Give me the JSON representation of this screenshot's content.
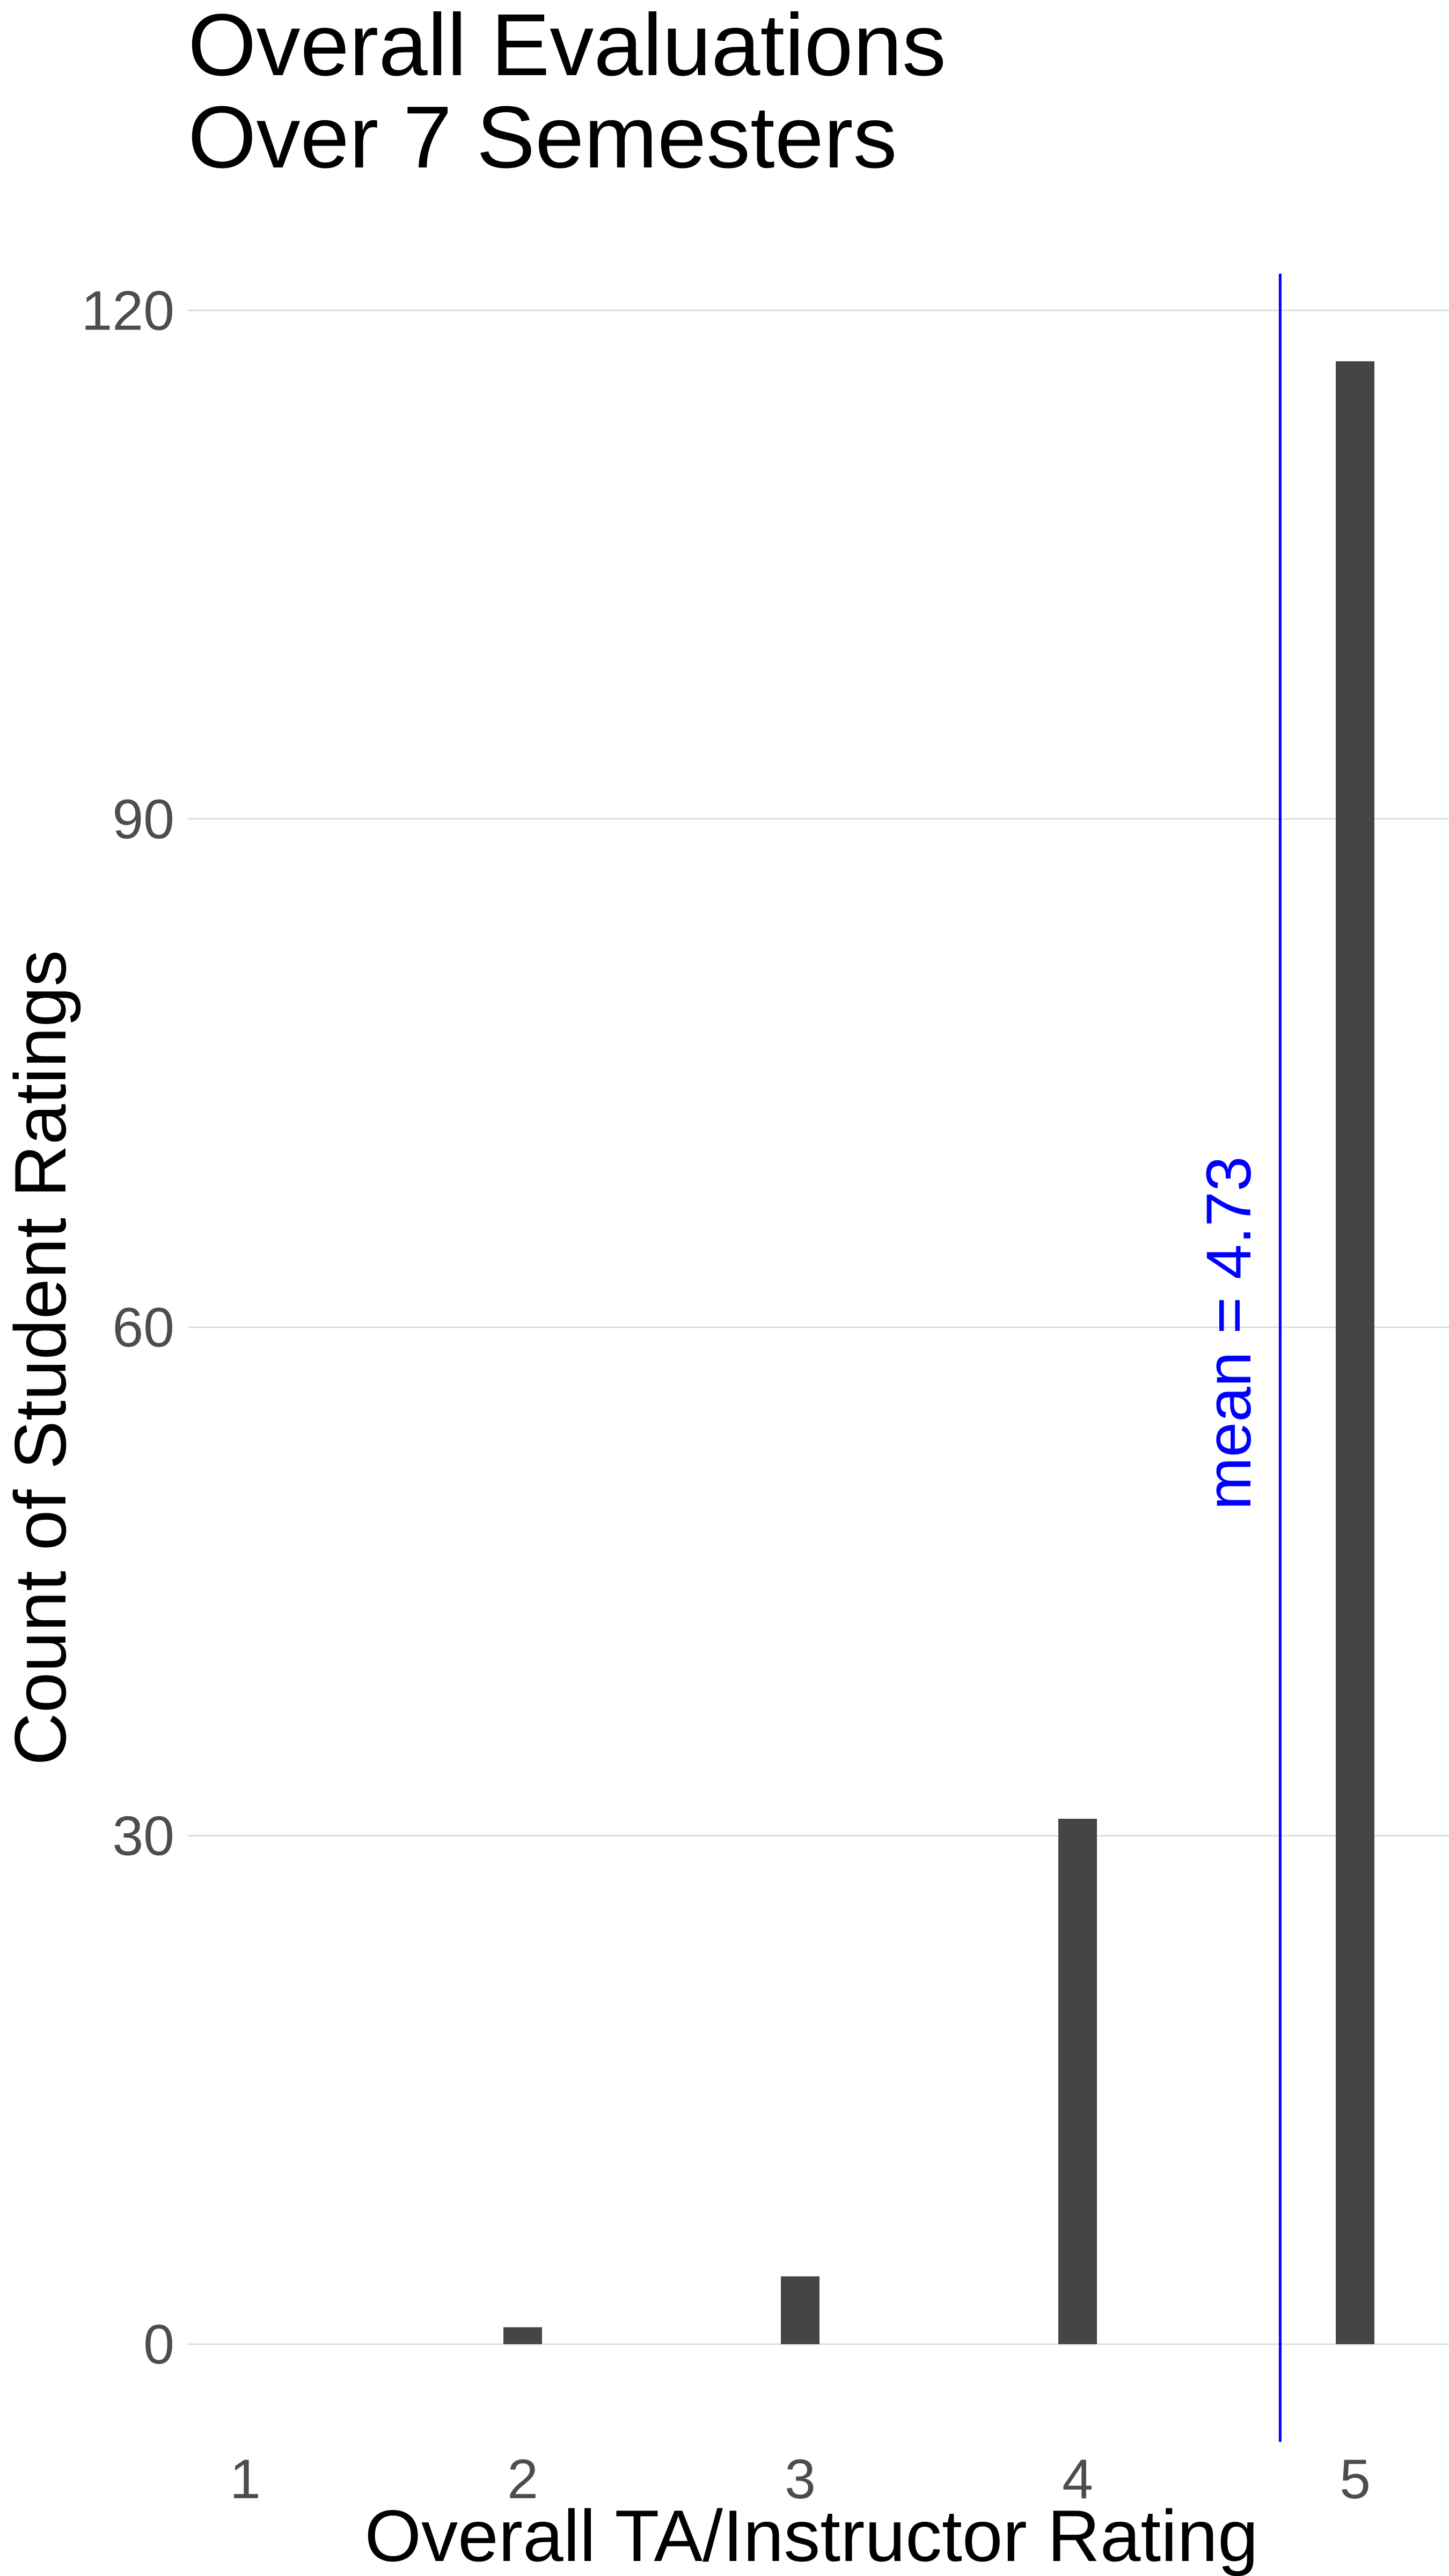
{
  "chart_data": {
    "type": "bar",
    "title_lines": [
      "Overall Evaluations",
      "Over 7 Semesters"
    ],
    "xlabel": "Overall TA/Instructor Rating",
    "ylabel": "Count of Student Ratings",
    "x": [
      1,
      2,
      3,
      4,
      5
    ],
    "values": [
      0,
      1,
      4,
      31,
      117
    ],
    "x_ticks": [
      "1",
      "2",
      "3",
      "4",
      "5"
    ],
    "y_ticks": [
      "0",
      "30",
      "60",
      "90",
      "120"
    ],
    "xlim": [
      0.6,
      5.3
    ],
    "ylim": [
      -6,
      125
    ],
    "grid": "horizontal major lines",
    "bar_color": "#454545",
    "mean_line": {
      "value": 4.73,
      "label": "mean = 4.73",
      "color": "#0000ff"
    }
  }
}
